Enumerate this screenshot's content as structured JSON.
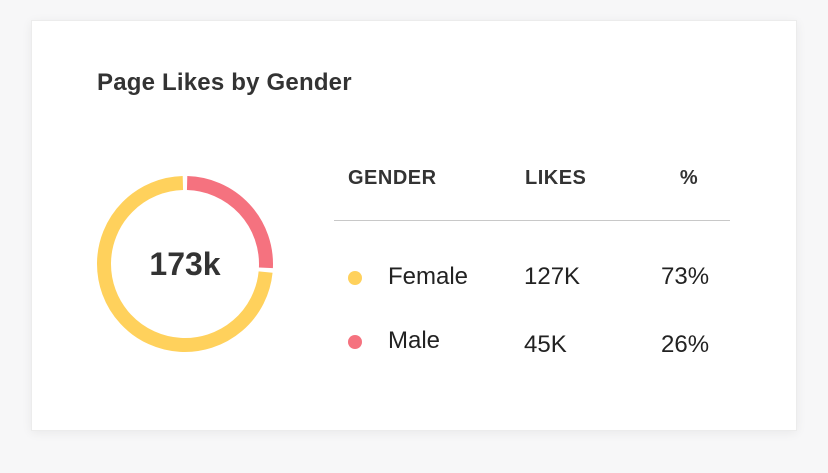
{
  "title": "Page Likes by Gender",
  "colors": {
    "female": "#FFD15C",
    "male": "#F5727F"
  },
  "table": {
    "headers": [
      "GENDER",
      "LIKES",
      "%"
    ],
    "rows": [
      {
        "gender": "Female",
        "likes": "127K",
        "percent": "73%"
      },
      {
        "gender": "Male",
        "likes": "45K",
        "percent": "26%"
      }
    ]
  },
  "chart_data": {
    "type": "pie",
    "title": "Page Likes by Gender",
    "center_label": "173k",
    "categories": [
      "Female",
      "Male"
    ],
    "values": [
      127,
      45
    ],
    "percents": [
      73,
      26
    ],
    "unit": "K",
    "donut": true
  }
}
